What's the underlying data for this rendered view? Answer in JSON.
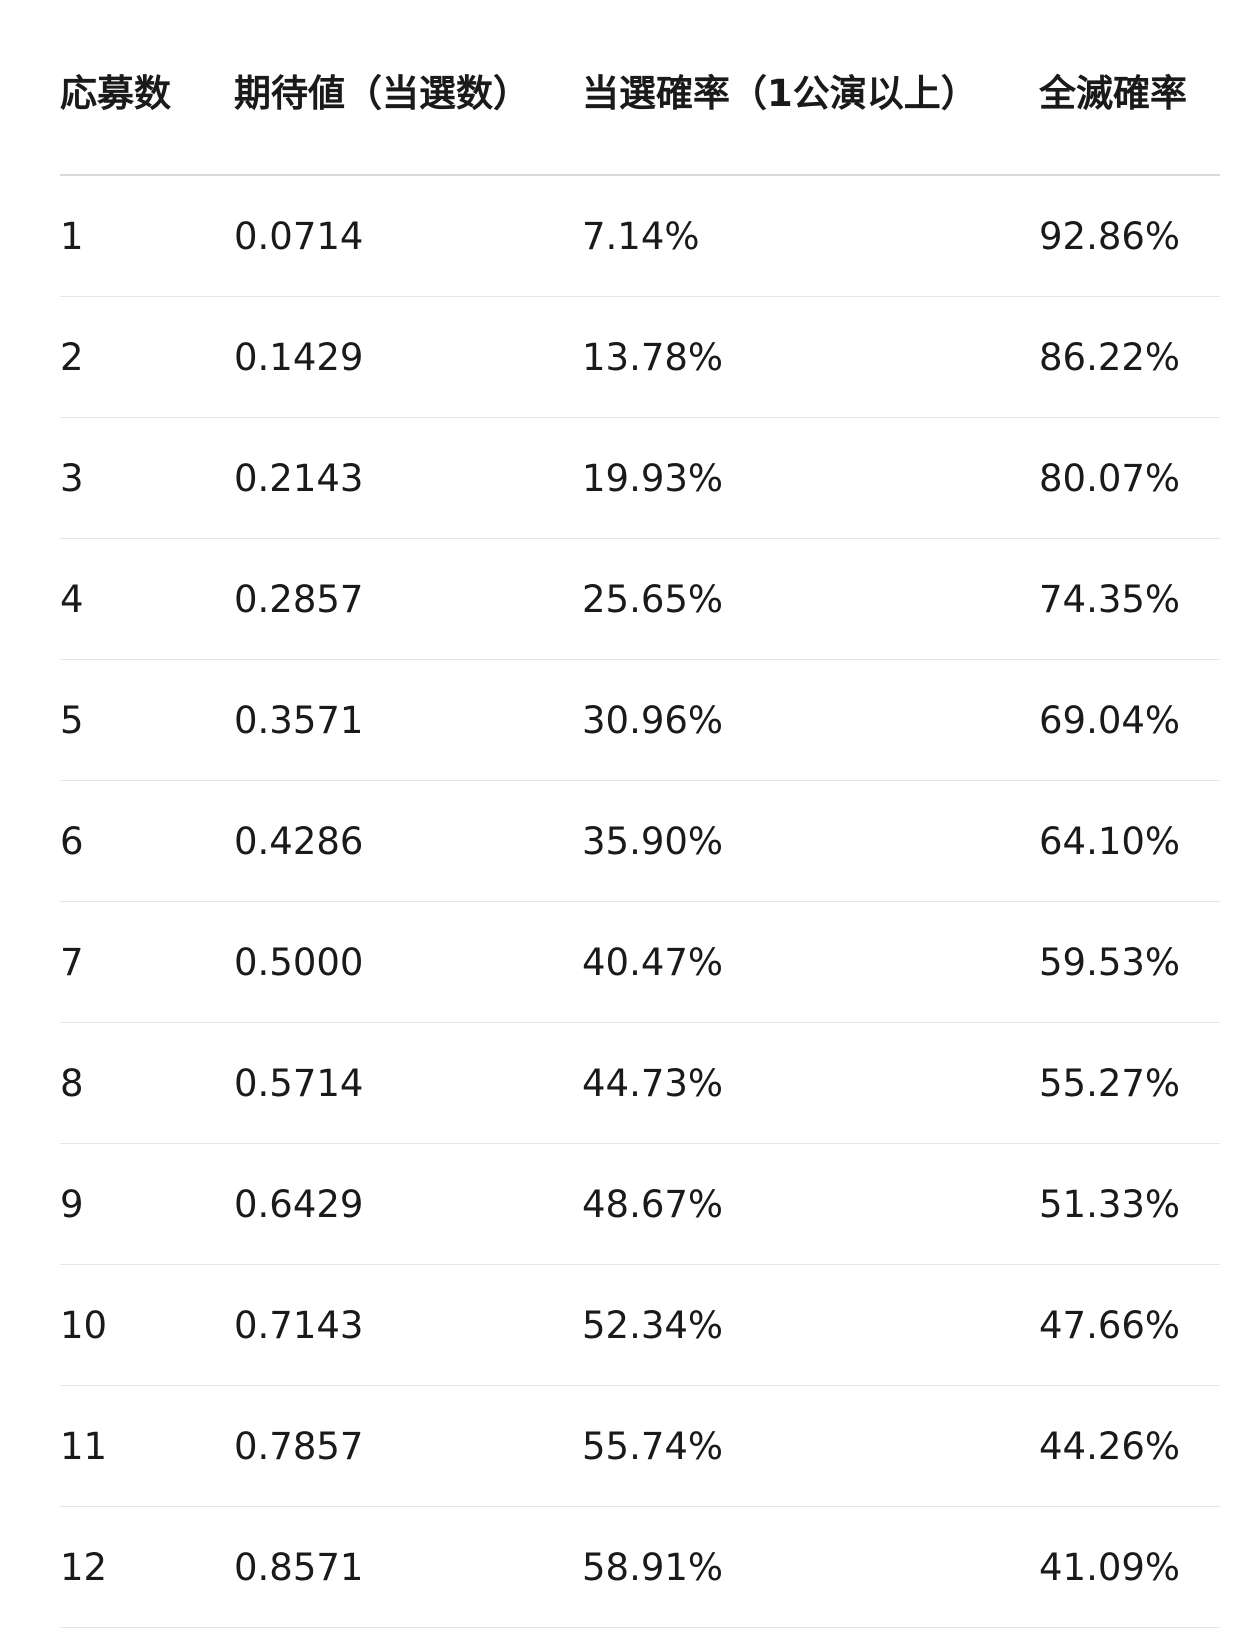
{
  "table": {
    "header": [
      "応募数",
      "期待値（当選数）",
      "当選確率（1公演以上）",
      "全滅確率"
    ],
    "rows": [
      [
        "1",
        "0.0714",
        "7.14%",
        "92.86%"
      ],
      [
        "2",
        "0.1429",
        "13.78%",
        "86.22%"
      ],
      [
        "3",
        "0.2143",
        "19.93%",
        "80.07%"
      ],
      [
        "4",
        "0.2857",
        "25.65%",
        "74.35%"
      ],
      [
        "5",
        "0.3571",
        "30.96%",
        "69.04%"
      ],
      [
        "6",
        "0.4286",
        "35.90%",
        "64.10%"
      ],
      [
        "7",
        "0.5000",
        "40.47%",
        "59.53%"
      ],
      [
        "8",
        "0.5714",
        "44.73%",
        "55.27%"
      ],
      [
        "9",
        "0.6429",
        "48.67%",
        "51.33%"
      ],
      [
        "10",
        "0.7143",
        "52.34%",
        "47.66%"
      ],
      [
        "11",
        "0.7857",
        "55.74%",
        "44.26%"
      ],
      [
        "12",
        "0.8571",
        "58.91%",
        "41.09%"
      ]
    ]
  }
}
